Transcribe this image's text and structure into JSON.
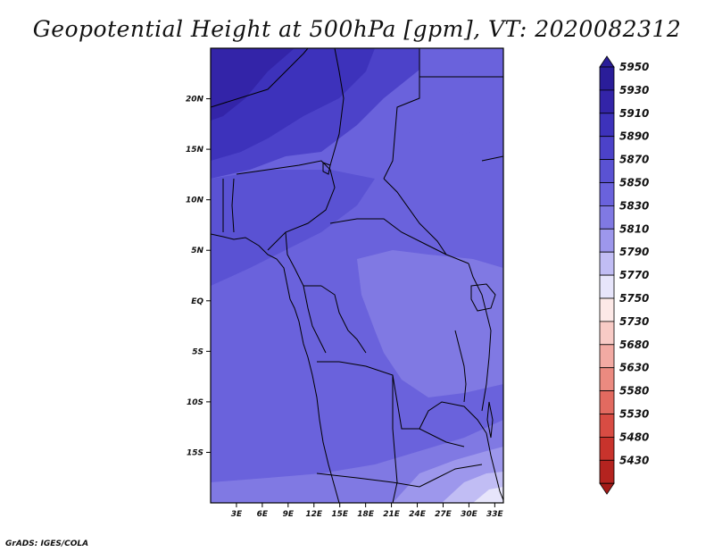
{
  "title": "Geopotential Height at 500hPa [gpm], VT: 2020082312",
  "footer": "GrADS: IGES/COLA",
  "map": {
    "lon_range": [
      0,
      34
    ],
    "lat_range": [
      -20,
      25
    ],
    "x_ticks": [
      {
        "lon": 3,
        "label": "3E"
      },
      {
        "lon": 6,
        "label": "6E"
      },
      {
        "lon": 9,
        "label": "9E"
      },
      {
        "lon": 12,
        "label": "12E"
      },
      {
        "lon": 15,
        "label": "15E"
      },
      {
        "lon": 18,
        "label": "18E"
      },
      {
        "lon": 21,
        "label": "21E"
      },
      {
        "lon": 24,
        "label": "24E"
      },
      {
        "lon": 27,
        "label": "27E"
      },
      {
        "lon": 30,
        "label": "30E"
      },
      {
        "lon": 33,
        "label": "33E"
      }
    ],
    "y_ticks": [
      {
        "lat": 20,
        "label": "20N"
      },
      {
        "lat": 15,
        "label": "15N"
      },
      {
        "lat": 10,
        "label": "10N"
      },
      {
        "lat": 5,
        "label": "5N"
      },
      {
        "lat": 0,
        "label": "EQ"
      },
      {
        "lat": -5,
        "label": "5S"
      },
      {
        "lat": -10,
        "label": "10S"
      },
      {
        "lat": -15,
        "label": "15S"
      }
    ]
  },
  "colorbar": {
    "levels": [
      {
        "label": "5950",
        "color": "#2a1d99"
      },
      {
        "label": "5930",
        "color": "#3324a8"
      },
      {
        "label": "5910",
        "color": "#3d32bb"
      },
      {
        "label": "5890",
        "color": "#4c42c9"
      },
      {
        "label": "5870",
        "color": "#5a52d3"
      },
      {
        "label": "5850",
        "color": "#6a62dc"
      },
      {
        "label": "5830",
        "color": "#8079e3"
      },
      {
        "label": "5810",
        "color": "#9d97ec"
      },
      {
        "label": "5790",
        "color": "#c1bdf4"
      },
      {
        "label": "5770",
        "color": "#e7e5fb"
      },
      {
        "label": "5750",
        "color": "#fde9e7"
      },
      {
        "label": "5730",
        "color": "#f8cbc6"
      },
      {
        "label": "5680",
        "color": "#f2aaa3"
      },
      {
        "label": "5630",
        "color": "#eb8a80"
      },
      {
        "label": "5580",
        "color": "#e26a60"
      },
      {
        "label": "5530",
        "color": "#d84c43"
      },
      {
        "label": "5480",
        "color": "#c8332c"
      },
      {
        "label": "5430",
        "color": "#b4231f"
      }
    ],
    "bottom_color": "#a41a17"
  }
}
